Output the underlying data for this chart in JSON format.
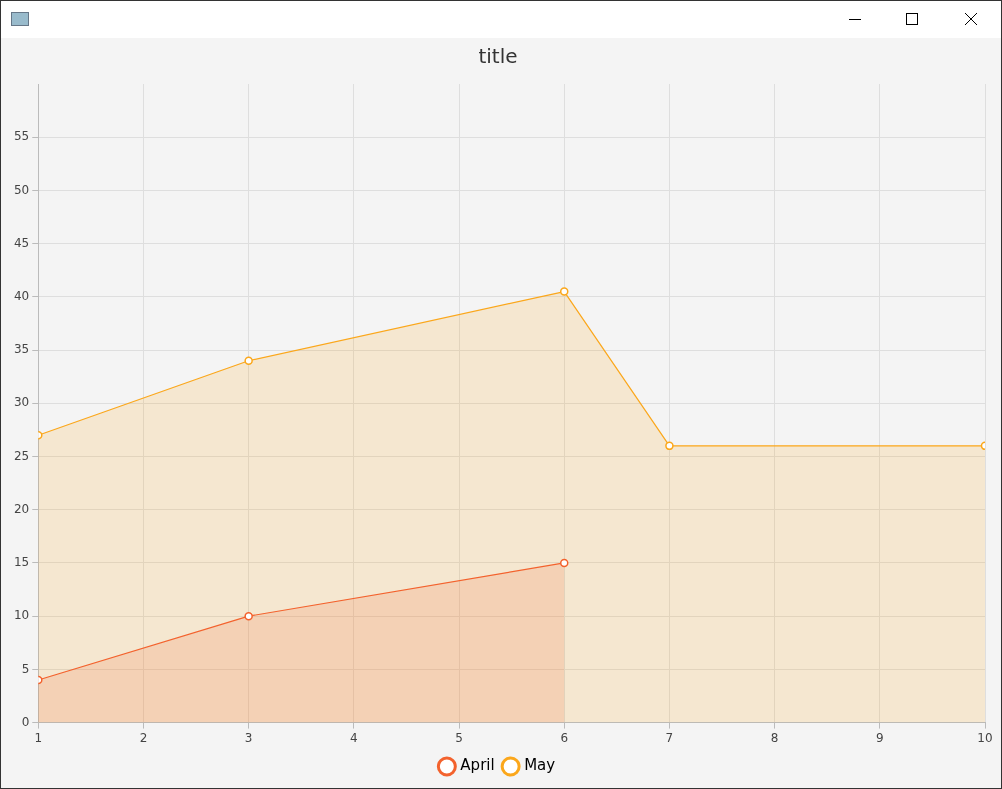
{
  "chart_data": {
    "type": "area",
    "title": "title",
    "series": [
      {
        "name": "April",
        "color": "#f3622d",
        "x": [
          1,
          3,
          6
        ],
        "values": [
          4,
          10,
          15
        ]
      },
      {
        "name": "May",
        "color": "#fba71b",
        "x": [
          1,
          3,
          6,
          7,
          10
        ],
        "values": [
          27,
          34,
          40.5,
          26,
          26
        ]
      }
    ],
    "xlim": [
      1,
      10
    ],
    "xticks": [
      1,
      2,
      3,
      4,
      5,
      6,
      7,
      8,
      9,
      10
    ],
    "ylim": [
      0,
      60
    ],
    "yticks": [
      0,
      5,
      10,
      15,
      20,
      25,
      30,
      35,
      40,
      45,
      50,
      55
    ],
    "grid": true,
    "legend": "bottom",
    "marker": "circle",
    "line_style": "solid"
  }
}
